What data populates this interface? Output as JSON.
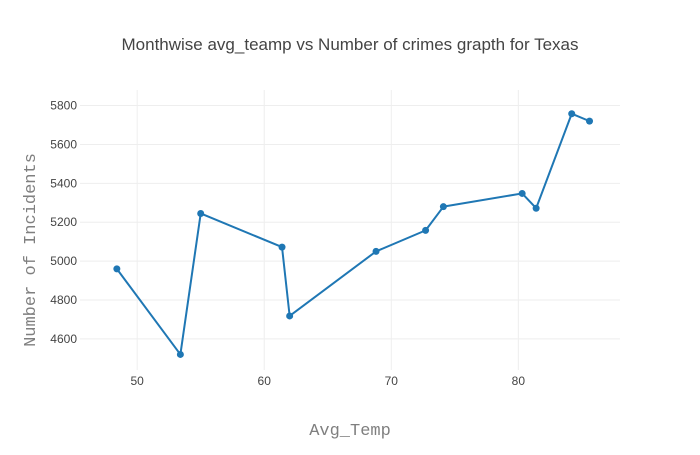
{
  "chart_data": {
    "type": "line",
    "title": "Monthwise avg_teamp vs Number of crimes grapth for Texas",
    "xlabel": "Avg_Temp",
    "ylabel": "Number of Incidents",
    "xlim": [
      45.5,
      88
    ],
    "ylim": [
      4440,
      5880
    ],
    "x_ticks": [
      50,
      60,
      70,
      80
    ],
    "y_ticks": [
      4600,
      4800,
      5000,
      5200,
      5400,
      5600,
      5800
    ],
    "grid": true,
    "series": [
      {
        "color": "#1f77b4",
        "mode": "lines+markers",
        "x": [
          48.4,
          53.4,
          55.0,
          61.4,
          62.0,
          68.8,
          72.7,
          74.1,
          80.3,
          81.4,
          84.2,
          85.6
        ],
        "y": [
          4960,
          4520,
          5245,
          5072,
          4718,
          5050,
          5158,
          5280,
          5348,
          5272,
          5758,
          5720
        ]
      }
    ]
  }
}
